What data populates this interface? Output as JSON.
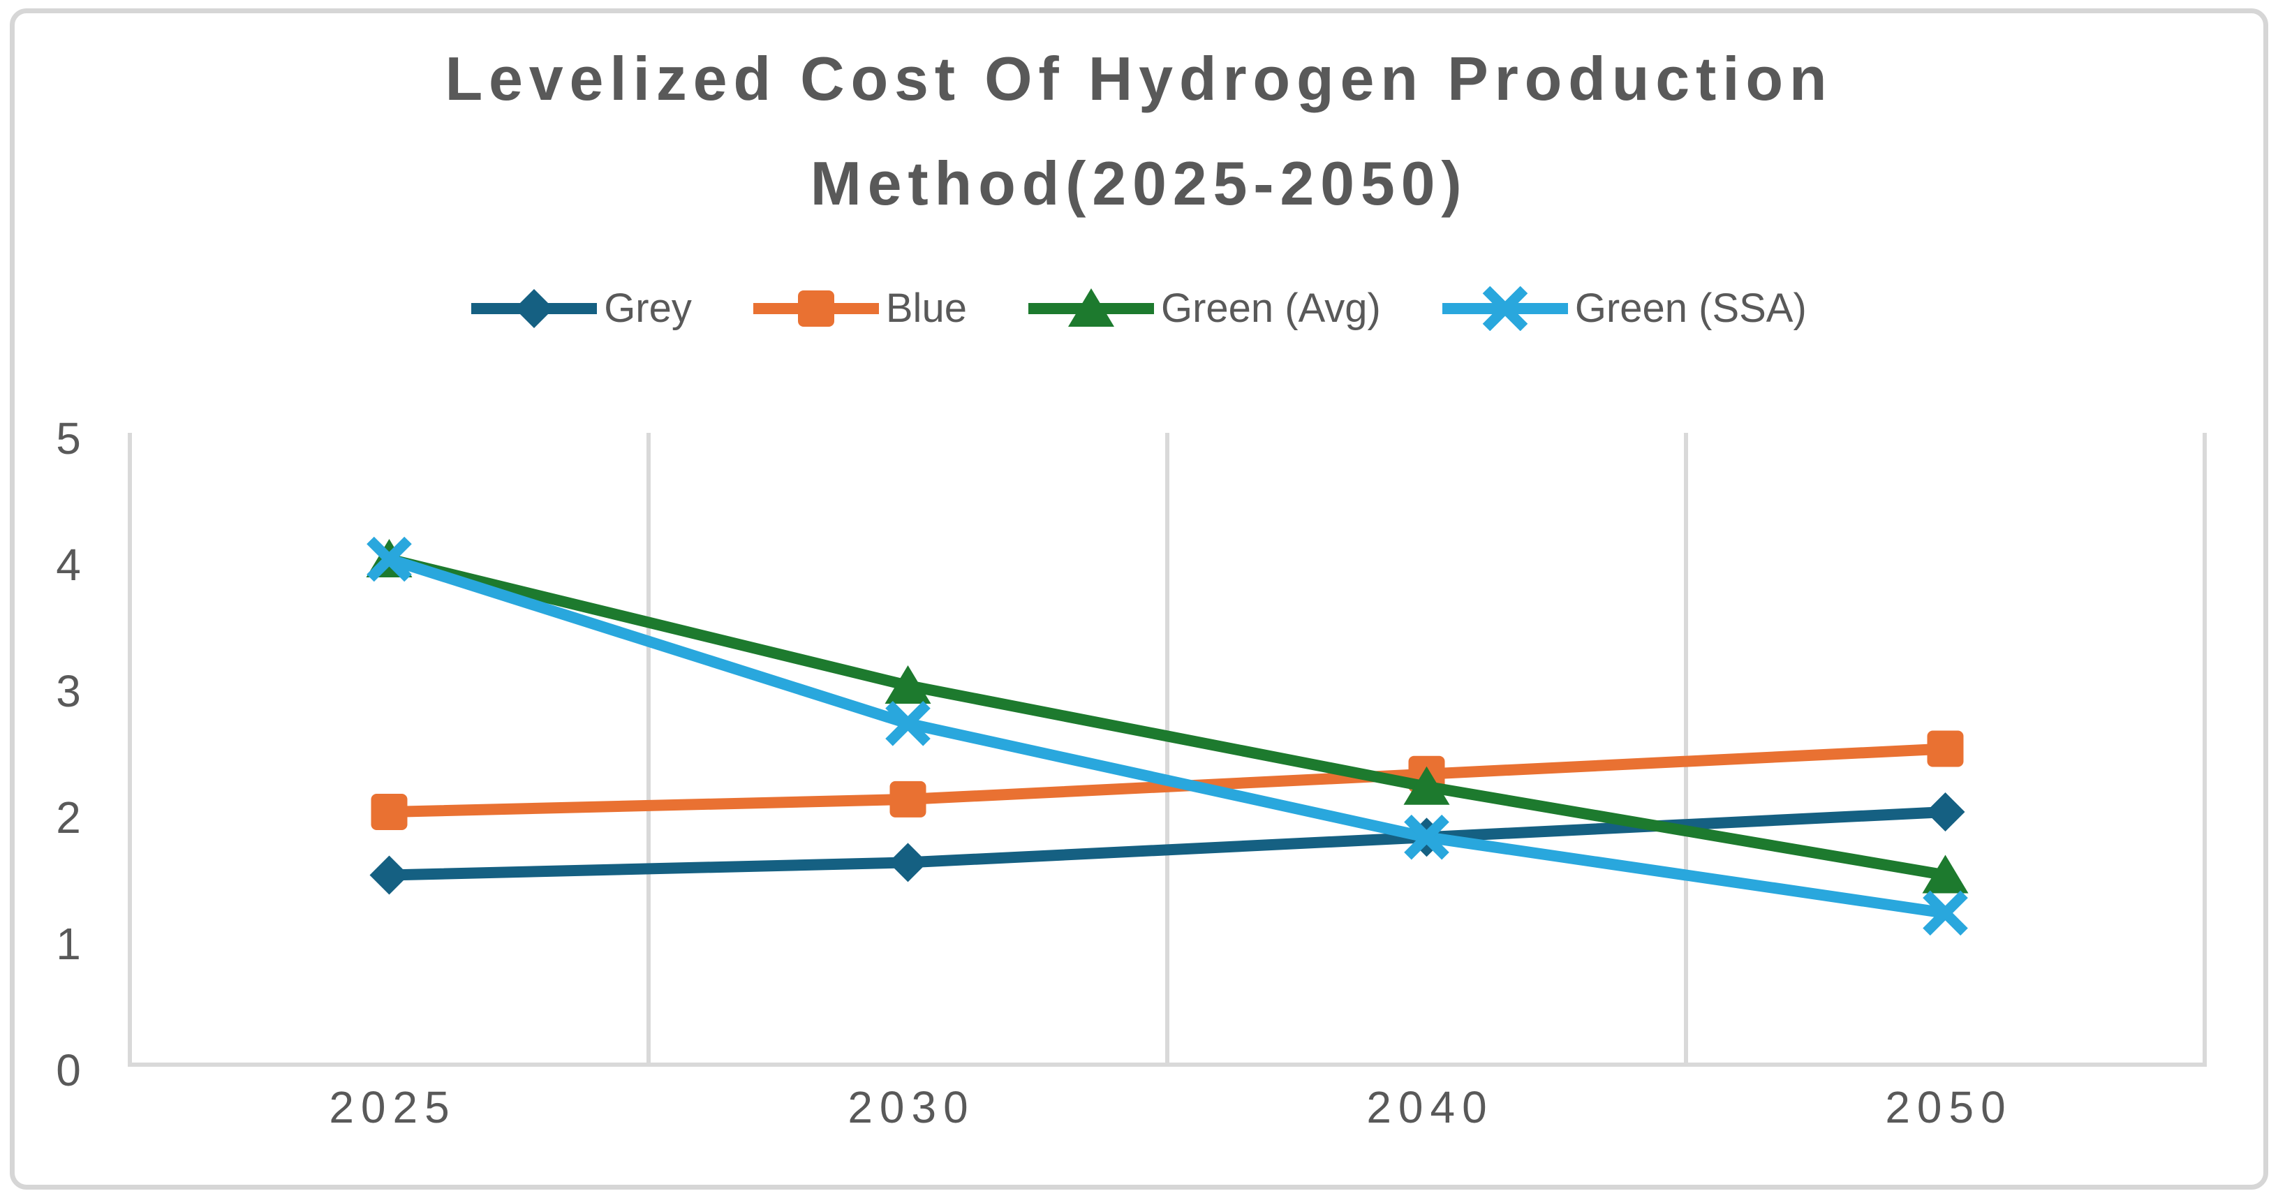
{
  "chart_data": {
    "type": "line",
    "title": "Levelized Cost Of Hydrogen Production Method(2025-2050)",
    "title_lines": [
      "Levelized Cost Of Hydrogen Production",
      "Method(2025-2050)"
    ],
    "categories": [
      "2025",
      "2030",
      "2040",
      "2050"
    ],
    "series": [
      {
        "name": "Grey",
        "color": "#156082",
        "marker": "diamond",
        "values": [
          1.5,
          1.6,
          1.8,
          2.0
        ]
      },
      {
        "name": "Blue",
        "color": "#E97132",
        "marker": "square",
        "values": [
          2.0,
          2.1,
          2.3,
          2.5
        ]
      },
      {
        "name": "Green (Avg)",
        "color": "#1D7A2E",
        "marker": "triangle",
        "values": [
          4.0,
          3.0,
          2.2,
          1.5
        ]
      },
      {
        "name": "Green (SSA)",
        "color": "#29A7DD",
        "marker": "x",
        "values": [
          4.0,
          2.7,
          1.8,
          1.2
        ]
      }
    ],
    "y_axis": {
      "min": 0,
      "max": 5,
      "tick_interval": 1,
      "tick_labels": [
        "0",
        "1",
        "2",
        "3",
        "4",
        "5"
      ]
    },
    "x_axis": {
      "tick_labels": [
        "2025",
        "2030",
        "2040",
        "2050"
      ]
    },
    "grid": "vertical-only",
    "legend_position": "top-center",
    "styles": {
      "text_color": "#595959",
      "grid_color": "#D9D9D9",
      "border_color": "#D6D6D6",
      "background": "#FFFFFF"
    }
  }
}
